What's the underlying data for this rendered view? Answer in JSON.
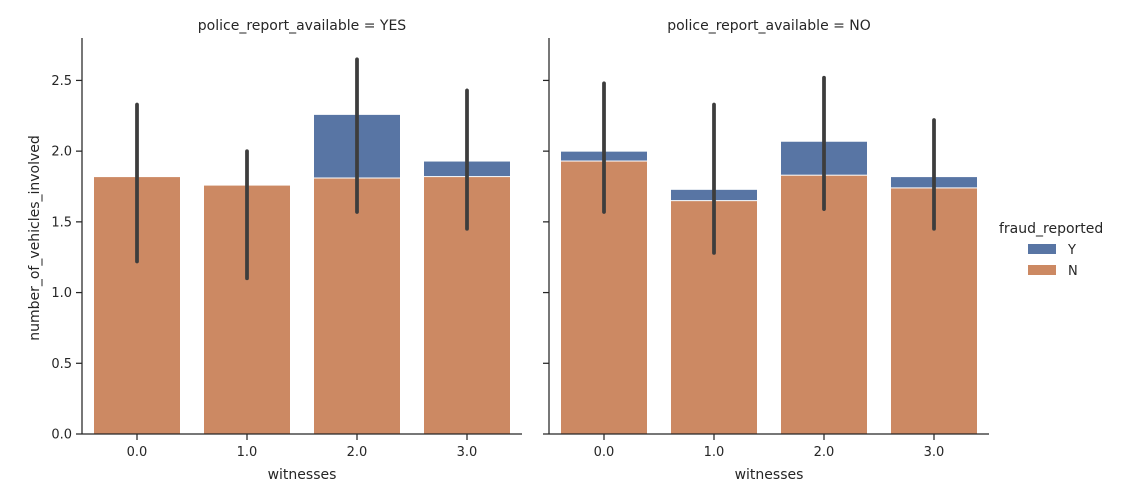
{
  "chart_data": {
    "type": "bar",
    "ylabel": "number_of_vehicles_involved",
    "xlabel": "witnesses",
    "categories": [
      "0.0",
      "1.0",
      "2.0",
      "3.0"
    ],
    "ylim": [
      0,
      2.8
    ],
    "yticks": [
      "0.0",
      "0.5",
      "1.0",
      "1.5",
      "2.0",
      "2.5"
    ],
    "legend": {
      "title": "fraud_reported",
      "placement": "right",
      "entries": [
        {
          "name": "Y",
          "color": "#5875a4"
        },
        {
          "name": "N",
          "color": "#cc8963"
        }
      ]
    },
    "panels": [
      {
        "title": "police_report_available = YES",
        "series": [
          {
            "name": "Y",
            "values": [
              1.82,
              1.76,
              2.26,
              1.93
            ],
            "ci": [
              [
                1.22,
                2.33
              ],
              [
                1.1,
                2.0
              ],
              [
                1.57,
                2.65
              ],
              [
                1.45,
                2.43
              ]
            ]
          },
          {
            "name": "N",
            "values": [
              1.82,
              1.76,
              1.81,
              1.82
            ],
            "ci": [
              [
                1.22,
                2.33
              ],
              [
                1.1,
                2.0
              ],
              [
                1.57,
                2.65
              ],
              [
                1.45,
                2.43
              ]
            ]
          }
        ]
      },
      {
        "title": "police_report_available = NO",
        "series": [
          {
            "name": "Y",
            "values": [
              2.0,
              1.73,
              2.07,
              1.82
            ],
            "ci": [
              [
                1.57,
                2.48
              ],
              [
                1.28,
                2.33
              ],
              [
                1.59,
                2.52
              ],
              [
                1.45,
                2.22
              ]
            ]
          },
          {
            "name": "N",
            "values": [
              1.93,
              1.65,
              1.83,
              1.74
            ],
            "ci": [
              [
                1.57,
                2.48
              ],
              [
                1.28,
                2.33
              ],
              [
                1.59,
                2.52
              ],
              [
                1.45,
                2.22
              ]
            ]
          }
        ]
      }
    ]
  }
}
